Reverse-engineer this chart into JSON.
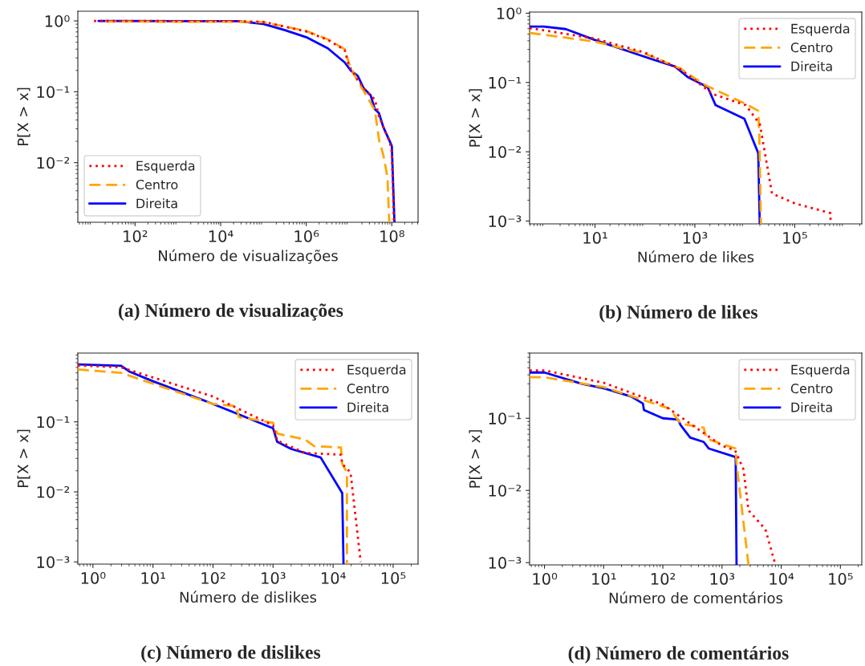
{
  "chart_data": [
    {
      "type": "line",
      "title": "(a) Número de visualizações",
      "xlabel": "Número de visualizações",
      "ylabel": "P[X > x]",
      "log": "xy",
      "xlim": [
        4.6,
        410000000
      ],
      "ylim": [
        0.00144,
        1.37
      ],
      "xticks": [
        {
          "value": 100,
          "label": "10²"
        },
        {
          "value": 10000,
          "label": "10⁴"
        },
        {
          "value": 1000000,
          "label": "10⁶"
        },
        {
          "value": 100000000,
          "label": "10⁸"
        }
      ],
      "yticks": [
        {
          "value": 1,
          "label": "10⁰"
        },
        {
          "value": 0.1,
          "label": "10⁻¹"
        },
        {
          "value": 0.01,
          "label": "10⁻²"
        }
      ],
      "legend": "lower left",
      "series": [
        {
          "name": "Esquerda",
          "color": "#ff0000",
          "line_style": "dotted",
          "x": [
            11,
            30000,
            100000,
            1000000,
            3200000,
            7900000,
            10000000,
            16000000,
            25000000,
            40000000,
            50000000,
            71000000,
            89000000,
            100000000,
            107000000,
            112000000
          ],
          "values": [
            1,
            0.99,
            0.97,
            0.71,
            0.54,
            0.39,
            0.23,
            0.147,
            0.102,
            0.078,
            0.045,
            0.027,
            0.02,
            0.014,
            0.0036,
            0.00144
          ]
        },
        {
          "name": "Centro",
          "color": "#ffa500",
          "line_style": "dashed",
          "x": [
            20,
            30000,
            100000,
            1000000,
            3200000,
            7900000,
            10000000,
            16000000,
            25000000,
            40000000,
            51000000,
            63000000,
            79000000,
            87000000
          ],
          "values": [
            0.98,
            0.97,
            0.96,
            0.72,
            0.55,
            0.4,
            0.25,
            0.14,
            0.09,
            0.055,
            0.02,
            0.0129,
            0.0063,
            0.00144
          ]
        },
        {
          "name": "Direita",
          "color": "#0000ff",
          "line_style": "solid",
          "x": [
            14,
            25000,
            100000,
            320000,
            1000000,
            3200000,
            7900000,
            11000000,
            16000000,
            22000000,
            32000000,
            40000000,
            50000000,
            63000000,
            93000000,
            100000000,
            115000000
          ],
          "values": [
            1,
            0.99,
            0.905,
            0.74,
            0.59,
            0.41,
            0.26,
            0.2,
            0.168,
            0.112,
            0.089,
            0.057,
            0.05,
            0.032,
            0.019,
            0.017,
            0.00144
          ]
        }
      ]
    },
    {
      "type": "line",
      "title": "(b) Número de likes",
      "xlabel": "Número de likes",
      "ylabel": "P[X > x]",
      "log": "xy",
      "xlim": [
        0.49,
        2200000
      ],
      "ylim": [
        0.00091,
        1.04
      ],
      "xticks": [
        {
          "value": 10,
          "label": "10¹"
        },
        {
          "value": 1000,
          "label": "10³"
        },
        {
          "value": 100000,
          "label": "10⁵"
        }
      ],
      "yticks": [
        {
          "value": 1,
          "label": "10⁰"
        },
        {
          "value": 0.1,
          "label": "10⁻¹"
        },
        {
          "value": 0.01,
          "label": "10⁻²"
        },
        {
          "value": 0.001,
          "label": "10⁻³"
        }
      ],
      "legend": "upper right",
      "series": [
        {
          "name": "Esquerda",
          "color": "#ff0000",
          "line_style": "dotted",
          "x": [
            0.49,
            10,
            100,
            510,
            1000,
            2300,
            10500,
            20000,
            25000,
            35000,
            100000,
            520000,
            520000
          ],
          "values": [
            0.61,
            0.43,
            0.27,
            0.155,
            0.108,
            0.068,
            0.047,
            0.025,
            0.01,
            0.0025,
            0.0018,
            0.0013,
            0.001
          ]
        },
        {
          "name": "Centro",
          "color": "#ffa500",
          "line_style": "dashed",
          "x": [
            0.49,
            10,
            100,
            510,
            1000,
            1700,
            10500,
            18600,
            19500,
            21000
          ],
          "values": [
            0.52,
            0.39,
            0.26,
            0.16,
            0.115,
            0.09,
            0.049,
            0.039,
            0.017,
            0.00091
          ]
        },
        {
          "name": "Direita",
          "color": "#0000ff",
          "line_style": "solid",
          "x": [
            0.49,
            0.95,
            2.6,
            10,
            130,
            400,
            740,
            1800,
            2600,
            9800,
            18600,
            19900
          ],
          "values": [
            0.64,
            0.64,
            0.59,
            0.41,
            0.22,
            0.17,
            0.118,
            0.086,
            0.047,
            0.03,
            0.0095,
            0.00091
          ]
        }
      ]
    },
    {
      "type": "line",
      "title": "(c) Número de dislikes",
      "xlabel": "Número de dislikes",
      "ylabel": "P[X > x]",
      "log": "xy",
      "xlim": [
        0.56,
        260000
      ],
      "ylim": [
        0.00093,
        0.96
      ],
      "xticks": [
        {
          "value": 1,
          "label": "10⁰"
        },
        {
          "value": 10,
          "label": "10¹"
        },
        {
          "value": 100,
          "label": "10²"
        },
        {
          "value": 1000,
          "label": "10³"
        },
        {
          "value": 10000,
          "label": "10⁴"
        },
        {
          "value": 100000,
          "label": "10⁵"
        }
      ],
      "yticks": [
        {
          "value": 0.1,
          "label": "10⁻¹"
        },
        {
          "value": 0.01,
          "label": "10⁻²"
        },
        {
          "value": 0.001,
          "label": "10⁻³"
        }
      ],
      "legend": "upper right",
      "series": [
        {
          "name": "Esquerda",
          "color": "#ff0000",
          "line_style": "dotted",
          "x": [
            0.56,
            2.95,
            10,
            100,
            1000,
            1170,
            3400,
            13500,
            14200,
            19500,
            28800
          ],
          "values": [
            0.64,
            0.6,
            0.43,
            0.23,
            0.089,
            0.054,
            0.036,
            0.034,
            0.025,
            0.019,
            0.001
          ]
        },
        {
          "name": "Centro",
          "color": "#ffa500",
          "line_style": "dashed",
          "x": [
            0.56,
            2.95,
            10,
            100,
            240,
            270,
            1000,
            1170,
            3400,
            4800,
            13500,
            14200,
            17000,
            17000
          ],
          "values": [
            0.56,
            0.5,
            0.35,
            0.18,
            0.168,
            0.117,
            0.097,
            0.068,
            0.056,
            0.045,
            0.043,
            0.025,
            0.019,
            0.00093
          ]
        },
        {
          "name": "Direita",
          "color": "#0000ff",
          "line_style": "solid",
          "x": [
            0.56,
            2.95,
            4.1,
            10,
            100,
            1000,
            1170,
            2000,
            6200,
            14200,
            14900
          ],
          "values": [
            0.66,
            0.63,
            0.52,
            0.38,
            0.18,
            0.081,
            0.052,
            0.041,
            0.031,
            0.0096,
            0.00093
          ]
        }
      ]
    },
    {
      "type": "line",
      "title": "(d) Número de comentários",
      "xlabel": "Número de comentários",
      "ylabel": "P[X > x]",
      "log": "xy",
      "xlim": [
        0.56,
        230000
      ],
      "ylim": [
        0.00093,
        0.8
      ],
      "xticks": [
        {
          "value": 1,
          "label": "10⁰"
        },
        {
          "value": 10,
          "label": "10¹"
        },
        {
          "value": 100,
          "label": "10²"
        },
        {
          "value": 1000,
          "label": "10³"
        },
        {
          "value": 10000,
          "label": "10⁴"
        },
        {
          "value": 100000,
          "label": "10⁵"
        }
      ],
      "yticks": [
        {
          "value": 0.1,
          "label": "10⁻¹"
        },
        {
          "value": 0.01,
          "label": "10⁻²"
        },
        {
          "value": 0.001,
          "label": "10⁻³"
        }
      ],
      "legend": "upper right",
      "series": [
        {
          "name": "Esquerda",
          "color": "#ff0000",
          "line_style": "dotted",
          "x": [
            0.56,
            1,
            10,
            100,
            1000,
            1660,
            2300,
            2800,
            5400,
            7800
          ],
          "values": [
            0.46,
            0.46,
            0.31,
            0.155,
            0.0415,
            0.036,
            0.0197,
            0.0053,
            0.0029,
            0.001
          ]
        },
        {
          "name": "Centro",
          "color": "#ffa500",
          "line_style": "dashed",
          "x": [
            0.56,
            1,
            10,
            130,
            200,
            490,
            550,
            1700,
            1760,
            2800
          ],
          "values": [
            0.37,
            0.37,
            0.27,
            0.136,
            0.084,
            0.074,
            0.052,
            0.038,
            0.0235,
            0.00093
          ]
        },
        {
          "name": "Direita",
          "color": "#0000ff",
          "line_style": "solid",
          "x": [
            0.56,
            1,
            4.3,
            10,
            29,
            46,
            48,
            100,
            180,
            200,
            290,
            490,
            600,
            1700,
            1760
          ],
          "values": [
            0.43,
            0.43,
            0.3,
            0.26,
            0.2,
            0.16,
            0.13,
            0.1,
            0.096,
            0.08,
            0.054,
            0.047,
            0.038,
            0.029,
            0.00093
          ]
        }
      ]
    }
  ]
}
